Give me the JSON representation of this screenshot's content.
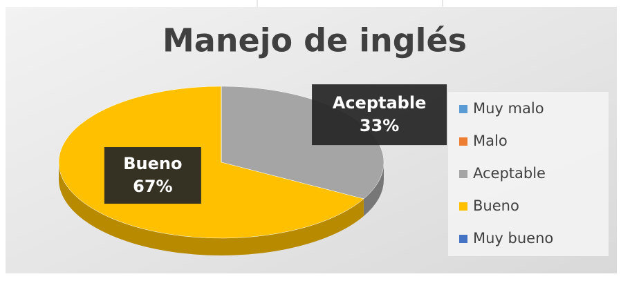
{
  "chart_data": {
    "type": "pie",
    "title": "Manejo de inglés",
    "categories": [
      "Muy malo",
      "Malo",
      "Aceptable",
      "Bueno",
      "Muy bueno"
    ],
    "values": [
      0,
      0,
      33,
      67,
      0
    ],
    "value_labels": [
      null,
      null,
      "33%",
      "67%",
      null
    ],
    "colors": [
      "#5b9bd5",
      "#ed7d31",
      "#a5a5a5",
      "#ffc000",
      "#4472c4"
    ],
    "legend": "right"
  }
}
